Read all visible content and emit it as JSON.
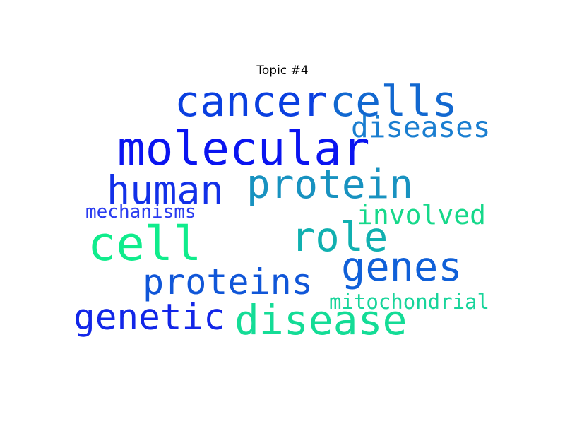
{
  "title": "Topic #4",
  "words": [
    {
      "text": "cancer",
      "color": "#0a3fe0"
    },
    {
      "text": "cells",
      "color": "#1268d0"
    },
    {
      "text": "diseases",
      "color": "#1a7ed0"
    },
    {
      "text": "molecular",
      "color": "#0a14f0"
    },
    {
      "text": "human",
      "color": "#1230e8"
    },
    {
      "text": "protein",
      "color": "#1892c0"
    },
    {
      "text": "mechanisms",
      "color": "#2a3cf0"
    },
    {
      "text": "involved",
      "color": "#16d88a"
    },
    {
      "text": "cell",
      "color": "#10ec8c"
    },
    {
      "text": "role",
      "color": "#10b0b0"
    },
    {
      "text": "genes",
      "color": "#1060d8"
    },
    {
      "text": "proteins",
      "color": "#1056d8"
    },
    {
      "text": "genetic",
      "color": "#1226e8"
    },
    {
      "text": "disease",
      "color": "#14dc96"
    },
    {
      "text": "mitochondrial",
      "color": "#18d49a"
    }
  ]
}
